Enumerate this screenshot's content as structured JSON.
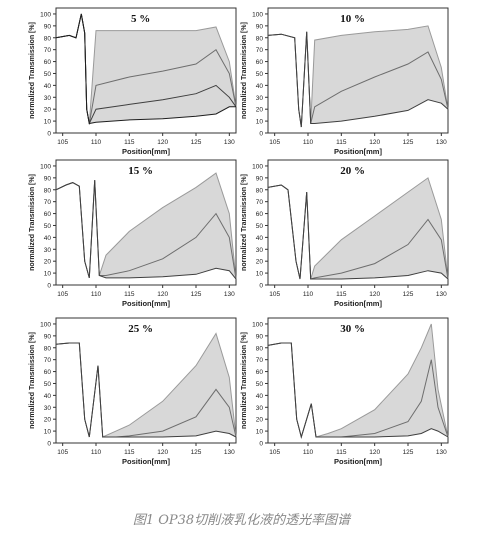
{
  "figure": {
    "caption": "图1 OP38切削液乳化液的透光率图谱"
  },
  "chart_data": [
    {
      "type": "line",
      "title": "5 %",
      "xlabel": "Position[mm]",
      "ylabel": "normalized Transmission [%]",
      "xlim": [
        104,
        131
      ],
      "ylim": [
        0,
        105
      ],
      "xticks": [
        "105",
        "110",
        "115",
        "120",
        "125",
        "130"
      ],
      "yticks": [
        "0",
        "10",
        "20",
        "30",
        "40",
        "50",
        "60",
        "70",
        "80",
        "90",
        "100"
      ],
      "series": [
        {
          "x": [
            104,
            106,
            107,
            107.8,
            108.3,
            108.6,
            109,
            110,
            115,
            120,
            125,
            128,
            130,
            131
          ],
          "y": [
            80,
            82,
            80,
            100,
            84,
            20,
            8,
            86,
            86,
            86,
            86,
            89,
            60,
            22
          ]
        },
        {
          "x": [
            104,
            106,
            107,
            107.8,
            108.3,
            108.6,
            109,
            110,
            115,
            120,
            125,
            128,
            130,
            131
          ],
          "y": [
            80,
            82,
            80,
            100,
            84,
            20,
            8,
            40,
            47,
            52,
            58,
            70,
            50,
            22
          ]
        },
        {
          "x": [
            104,
            106,
            107,
            107.8,
            108.3,
            108.6,
            109,
            110,
            115,
            120,
            125,
            128,
            130,
            131
          ],
          "y": [
            80,
            82,
            80,
            100,
            84,
            20,
            8,
            20,
            24,
            28,
            33,
            40,
            30,
            22
          ]
        },
        {
          "x": [
            104,
            106,
            107,
            107.8,
            108.3,
            108.6,
            109,
            110,
            115,
            120,
            125,
            128,
            130,
            131
          ],
          "y": [
            80,
            82,
            80,
            100,
            84,
            20,
            8,
            9,
            11,
            12,
            14,
            16,
            22,
            22
          ]
        }
      ]
    },
    {
      "type": "line",
      "title": "10 %",
      "xlabel": "Position[mm]",
      "ylabel": "normalized Transmission [%]",
      "xlim": [
        104,
        131
      ],
      "ylim": [
        0,
        105
      ],
      "xticks": [
        "105",
        "110",
        "115",
        "120",
        "125",
        "130"
      ],
      "yticks": [
        "0",
        "10",
        "20",
        "30",
        "40",
        "50",
        "60",
        "70",
        "80",
        "90",
        "100"
      ],
      "series": [
        {
          "x": [
            104,
            106,
            108,
            108.6,
            109,
            109.8,
            110.4,
            111,
            115,
            120,
            125,
            128,
            130,
            131
          ],
          "y": [
            82,
            83,
            80,
            20,
            5,
            85,
            8,
            78,
            82,
            85,
            87,
            90,
            55,
            20
          ]
        },
        {
          "x": [
            104,
            106,
            108,
            108.6,
            109,
            109.8,
            110.4,
            111,
            115,
            120,
            125,
            128,
            130,
            131
          ],
          "y": [
            82,
            83,
            80,
            20,
            5,
            85,
            8,
            22,
            35,
            47,
            58,
            68,
            45,
            20
          ]
        },
        {
          "x": [
            104,
            106,
            108,
            108.6,
            109,
            109.8,
            110.4,
            111,
            115,
            120,
            125,
            128,
            130,
            131
          ],
          "y": [
            82,
            83,
            80,
            20,
            5,
            85,
            8,
            8,
            10,
            14,
            19,
            28,
            25,
            20
          ]
        }
      ]
    },
    {
      "type": "line",
      "title": "15 %",
      "xlabel": "Position[mm]",
      "ylabel": "normalized Transmission [%]",
      "xlim": [
        104,
        131
      ],
      "ylim": [
        0,
        105
      ],
      "xticks": [
        "105",
        "110",
        "115",
        "120",
        "125",
        "130"
      ],
      "yticks": [
        "0",
        "10",
        "20",
        "30",
        "40",
        "50",
        "60",
        "70",
        "80",
        "90",
        "100"
      ],
      "series": [
        {
          "x": [
            104,
            105.5,
            106.5,
            107.5,
            108.3,
            109,
            109.8,
            110.5,
            111.5,
            115,
            120,
            125,
            128,
            130,
            131
          ],
          "y": [
            80,
            84,
            86,
            83,
            20,
            6,
            88,
            8,
            25,
            45,
            65,
            82,
            94,
            60,
            5
          ]
        },
        {
          "x": [
            104,
            105.5,
            106.5,
            107.5,
            108.3,
            109,
            109.8,
            110.5,
            111.5,
            115,
            120,
            125,
            128,
            130,
            131
          ],
          "y": [
            80,
            84,
            86,
            83,
            20,
            6,
            88,
            8,
            8,
            12,
            22,
            40,
            60,
            40,
            5
          ]
        },
        {
          "x": [
            104,
            105.5,
            106.5,
            107.5,
            108.3,
            109,
            109.8,
            110.5,
            111.5,
            115,
            120,
            125,
            128,
            130,
            131
          ],
          "y": [
            80,
            84,
            86,
            83,
            20,
            6,
            88,
            8,
            6,
            6,
            7,
            9,
            14,
            12,
            5
          ]
        }
      ]
    },
    {
      "type": "line",
      "title": "20 %",
      "xlabel": "Position[mm]",
      "ylabel": "normalized Transmission [%]",
      "xlim": [
        104,
        131
      ],
      "ylim": [
        0,
        105
      ],
      "xticks": [
        "105",
        "110",
        "115",
        "120",
        "125",
        "130"
      ],
      "yticks": [
        "0",
        "10",
        "20",
        "30",
        "40",
        "50",
        "60",
        "70",
        "80",
        "90",
        "100"
      ],
      "series": [
        {
          "x": [
            104,
            106,
            107,
            108.2,
            108.8,
            109.8,
            110.4,
            111,
            115,
            120,
            125,
            128,
            130,
            131
          ],
          "y": [
            82,
            84,
            80,
            20,
            5,
            78,
            5,
            16,
            38,
            58,
            78,
            90,
            55,
            5
          ]
        },
        {
          "x": [
            104,
            106,
            107,
            108.2,
            108.8,
            109.8,
            110.4,
            111,
            115,
            120,
            125,
            128,
            130,
            131
          ],
          "y": [
            82,
            84,
            80,
            20,
            5,
            78,
            5,
            6,
            10,
            18,
            34,
            55,
            38,
            5
          ]
        },
        {
          "x": [
            104,
            106,
            107,
            108.2,
            108.8,
            109.8,
            110.4,
            111,
            115,
            120,
            125,
            128,
            130,
            131
          ],
          "y": [
            82,
            84,
            80,
            20,
            5,
            78,
            5,
            5,
            5,
            6,
            8,
            12,
            10,
            5
          ]
        }
      ]
    },
    {
      "type": "line",
      "title": "25 %",
      "xlabel": "Position[mm]",
      "ylabel": "normalized Transmission [%]",
      "xlim": [
        104,
        131
      ],
      "ylim": [
        0,
        105
      ],
      "xticks": [
        "105",
        "110",
        "115",
        "120",
        "125",
        "130"
      ],
      "yticks": [
        "0",
        "10",
        "20",
        "30",
        "40",
        "50",
        "60",
        "70",
        "80",
        "90",
        "100"
      ],
      "series": [
        {
          "x": [
            104,
            106,
            107.5,
            108.3,
            109,
            110.3,
            111,
            113,
            115,
            120,
            125,
            128,
            130,
            131
          ],
          "y": [
            83,
            84,
            84,
            20,
            5,
            65,
            5,
            10,
            15,
            35,
            65,
            92,
            55,
            5
          ]
        },
        {
          "x": [
            104,
            106,
            107.5,
            108.3,
            109,
            110.3,
            111,
            113,
            115,
            120,
            125,
            128,
            130,
            131
          ],
          "y": [
            83,
            84,
            84,
            20,
            5,
            65,
            5,
            5,
            6,
            10,
            22,
            45,
            30,
            5
          ]
        },
        {
          "x": [
            104,
            106,
            107.5,
            108.3,
            109,
            110.3,
            111,
            113,
            115,
            120,
            125,
            128,
            130,
            131
          ],
          "y": [
            83,
            84,
            84,
            20,
            5,
            65,
            5,
            5,
            5,
            5,
            6,
            10,
            8,
            5
          ]
        }
      ]
    },
    {
      "type": "line",
      "title": "30 %",
      "xlabel": "Position[mm]",
      "ylabel": "normalized Transmission [%]",
      "xlim": [
        104,
        131
      ],
      "ylim": [
        0,
        105
      ],
      "xticks": [
        "105",
        "110",
        "115",
        "120",
        "125",
        "130"
      ],
      "yticks": [
        "0",
        "10",
        "20",
        "30",
        "40",
        "50",
        "60",
        "70",
        "80",
        "90",
        "100"
      ],
      "series": [
        {
          "x": [
            104,
            106,
            107.5,
            108.3,
            109,
            110.5,
            111.2,
            113,
            115,
            120,
            125,
            127,
            128.5,
            129.5,
            131
          ],
          "y": [
            82,
            84,
            84,
            20,
            5,
            33,
            5,
            8,
            12,
            28,
            58,
            80,
            100,
            45,
            5
          ]
        },
        {
          "x": [
            104,
            106,
            107.5,
            108.3,
            109,
            110.5,
            111.2,
            113,
            115,
            120,
            125,
            127,
            128.5,
            129.5,
            131
          ],
          "y": [
            82,
            84,
            84,
            20,
            5,
            33,
            5,
            5,
            5,
            8,
            18,
            35,
            70,
            30,
            5
          ]
        },
        {
          "x": [
            104,
            106,
            107.5,
            108.3,
            109,
            110.5,
            111.2,
            113,
            115,
            120,
            125,
            127,
            128.5,
            129.5,
            131
          ],
          "y": [
            82,
            84,
            84,
            20,
            5,
            33,
            5,
            5,
            5,
            5,
            6,
            8,
            12,
            10,
            5
          ]
        }
      ]
    }
  ]
}
